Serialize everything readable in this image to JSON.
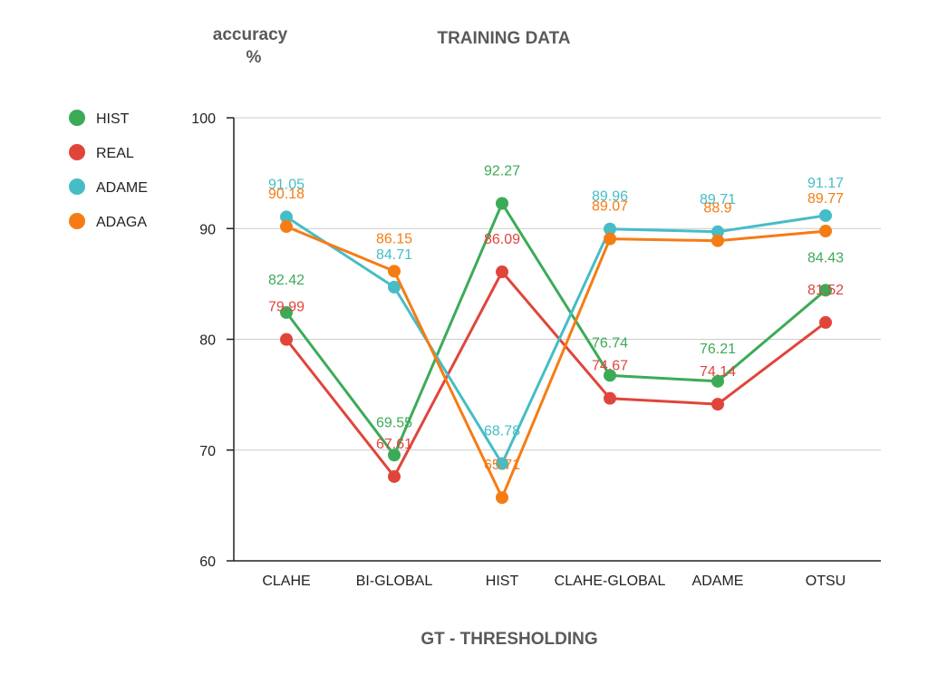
{
  "chart_data": {
    "type": "line",
    "title": "TRAINING DATA",
    "ylabel_line1": "accuracy",
    "ylabel_line2": "%",
    "xlabel": "GT - THRESHOLDING",
    "ylim": [
      60,
      100
    ],
    "yticks": [
      60,
      70,
      80,
      90,
      100
    ],
    "grid": true,
    "legend_position": "left",
    "categories": [
      "CLAHE",
      "BI-GLOBAL",
      "HIST",
      "CLAHE-GLOBAL",
      "ADAME",
      "OTSU"
    ],
    "series": [
      {
        "name": "HIST",
        "color": "#3cab58",
        "values": [
          82.42,
          69.55,
          92.27,
          76.74,
          76.21,
          84.43
        ]
      },
      {
        "name": "REAL",
        "color": "#e0453b",
        "values": [
          79.99,
          67.61,
          86.09,
          74.67,
          74.14,
          81.52
        ]
      },
      {
        "name": "ADAME",
        "color": "#46bdc6",
        "values": [
          91.05,
          84.71,
          68.78,
          89.96,
          89.71,
          91.17
        ]
      },
      {
        "name": "ADAGA",
        "color": "#f57c14",
        "values": [
          90.18,
          86.15,
          65.71,
          89.07,
          88.9,
          89.77
        ]
      }
    ]
  }
}
